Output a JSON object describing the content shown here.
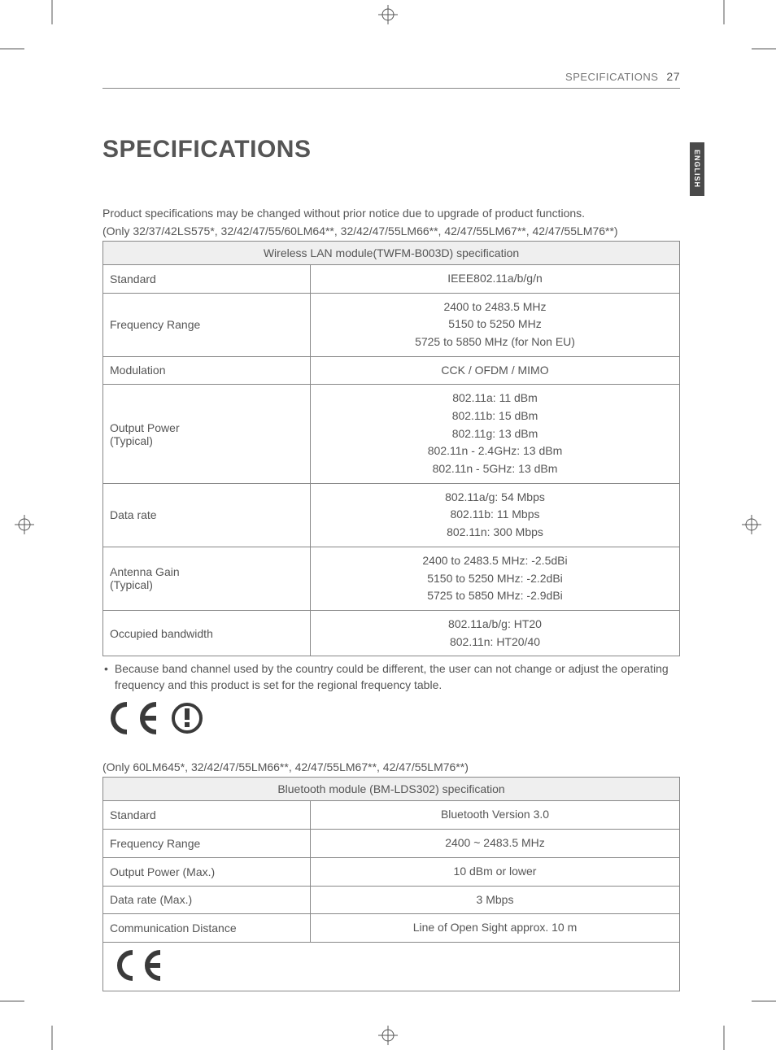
{
  "header": {
    "section": "SPECIFICATIONS",
    "page_number": "27"
  },
  "title": "SPECIFICATIONS",
  "side_tab": "ENGLISH",
  "intro": "Product specifications may be changed without prior notice due to upgrade of product functions.",
  "wlan": {
    "models_note": "(Only 32/37/42LS575*, 32/42/47/55/60LM64**, 32/42/47/55LM66**, 42/47/55LM67**, 42/47/55LM76**)",
    "table_title": "Wireless LAN module(TWFM-B003D) specification",
    "rows": {
      "standard": {
        "label": "Standard",
        "value": "IEEE802.11a/b/g/n"
      },
      "freq": {
        "label": "Frequency Range",
        "values": [
          "2400 to 2483.5 MHz",
          "5150 to 5250 MHz",
          "5725 to 5850 MHz (for Non EU)"
        ]
      },
      "mod": {
        "label": "Modulation",
        "value": "CCK / OFDM / MIMO"
      },
      "power": {
        "label": "Output Power\n(Typical)",
        "values": [
          "802.11a: 11 dBm",
          "802.11b: 15 dBm",
          "802.11g: 13 dBm",
          "802.11n - 2.4GHz: 13 dBm",
          "802.11n - 5GHz: 13 dBm"
        ]
      },
      "rate": {
        "label": "Data rate",
        "values": [
          "802.11a/g: 54 Mbps",
          "802.11b: 11 Mbps",
          "802.11n: 300 Mbps"
        ]
      },
      "gain": {
        "label": "Antenna Gain\n(Typical)",
        "values": [
          "2400 to 2483.5 MHz: -2.5dBi",
          "5150 to 5250 MHz: -2.2dBi",
          "5725 to 5850 MHz: -2.9dBi"
        ]
      },
      "bw": {
        "label": "Occupied bandwidth",
        "values": [
          "802.11a/b/g: HT20",
          "802.11n: HT20/40"
        ]
      }
    },
    "footnote": "Because band channel used by the country could be different, the user can not change or adjust the operating frequency and this product is set for the regional frequency table."
  },
  "bt": {
    "models_note": "(Only 60LM645*, 32/42/47/55LM66**, 42/47/55LM67**, 42/47/55LM76**)",
    "table_title": "Bluetooth module (BM-LDS302) specification",
    "rows": {
      "standard": {
        "label": "Standard",
        "value": "Bluetooth Version 3.0"
      },
      "freq": {
        "label": "Frequency Range",
        "value": "2400 ~ 2483.5 MHz"
      },
      "power": {
        "label": "Output Power (Max.)",
        "value": "10 dBm or lower"
      },
      "rate": {
        "label": "Data rate (Max.)",
        "value": "3 Mbps"
      },
      "dist": {
        "label": "Communication Distance",
        "value": "Line of Open Sight approx. 10 m"
      }
    }
  },
  "marks": {
    "ce_color": "#3a3a3a",
    "alert_color": "#3a3a3a"
  }
}
